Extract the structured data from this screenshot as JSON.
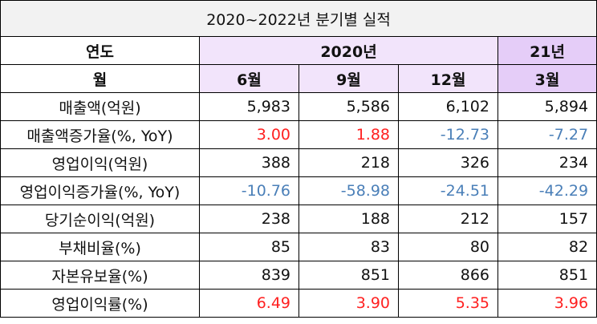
{
  "title": "2020~2022년 분기별 실적",
  "header": {
    "year_label": "연도",
    "year_2020": "2020년",
    "year_21": "21년",
    "month_label": "월",
    "months": [
      "6월",
      "9월",
      "12월",
      "3월"
    ]
  },
  "rows": [
    {
      "label": "매출액(억원)",
      "values": [
        "5,983",
        "5,586",
        "6,102",
        "5,894"
      ],
      "colors": [
        "",
        "",
        "",
        ""
      ]
    },
    {
      "label": "매출액증가율(%, YoY)",
      "values": [
        "3.00",
        "1.88",
        "-12.73",
        "-7.27"
      ],
      "colors": [
        "red",
        "red",
        "blue",
        "blue"
      ]
    },
    {
      "label": "영업이익(억원)",
      "values": [
        "388",
        "218",
        "326",
        "234"
      ],
      "colors": [
        "",
        "",
        "",
        ""
      ]
    },
    {
      "label": "영업이익증가율(%, YoY)",
      "values": [
        "-10.76",
        "-58.98",
        "-24.51",
        "-42.29"
      ],
      "colors": [
        "blue",
        "blue",
        "blue",
        "blue"
      ]
    },
    {
      "label": "당기순이익(억원)",
      "values": [
        "238",
        "188",
        "212",
        "157"
      ],
      "colors": [
        "",
        "",
        "",
        ""
      ]
    },
    {
      "label": "부채비율(%)",
      "values": [
        "85",
        "83",
        "80",
        "82"
      ],
      "colors": [
        "",
        "",
        "",
        ""
      ]
    },
    {
      "label": "자본유보율(%)",
      "values": [
        "839",
        "851",
        "866",
        "851"
      ],
      "colors": [
        "",
        "",
        "",
        ""
      ]
    },
    {
      "label": "영업이익률(%)",
      "values": [
        "6.49",
        "3.90",
        "5.35",
        "3.96"
      ],
      "colors": [
        "red",
        "red",
        "red",
        "red"
      ]
    }
  ],
  "colors": {
    "positive": "#ff2020",
    "negative": "#4a7fb8",
    "header_2020": "#f2e4fb",
    "header_21": "#e5cdf8",
    "title_bg": "#f2f2f2"
  }
}
